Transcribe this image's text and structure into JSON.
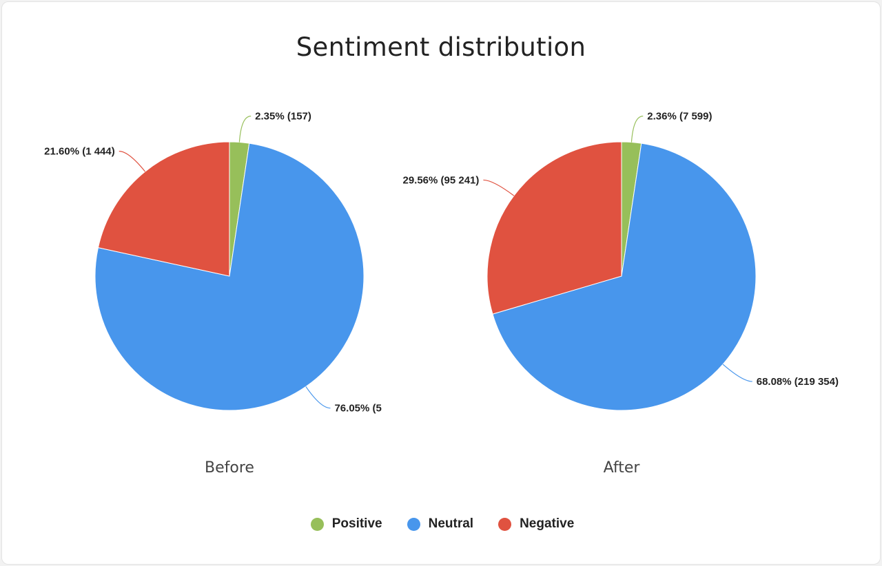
{
  "chart_data": {
    "type": "pie",
    "title": "Sentiment distribution",
    "legend_position": "bottom",
    "categories": [
      "Positive",
      "Neutral",
      "Negative"
    ],
    "colors": [
      "#97bf5a",
      "#4896ec",
      "#e05240"
    ],
    "charts": [
      {
        "name": "Before",
        "values": [
          2.35,
          76.05,
          21.6
        ],
        "labels": [
          "2.35% (157)",
          "76.05% (5",
          "21.60% (1 444)"
        ]
      },
      {
        "name": "After",
        "values": [
          2.36,
          68.08,
          29.56
        ],
        "labels": [
          "2.36% (7 599)",
          "68.08% (219 354)",
          "29.56% (95 241)"
        ]
      }
    ]
  }
}
